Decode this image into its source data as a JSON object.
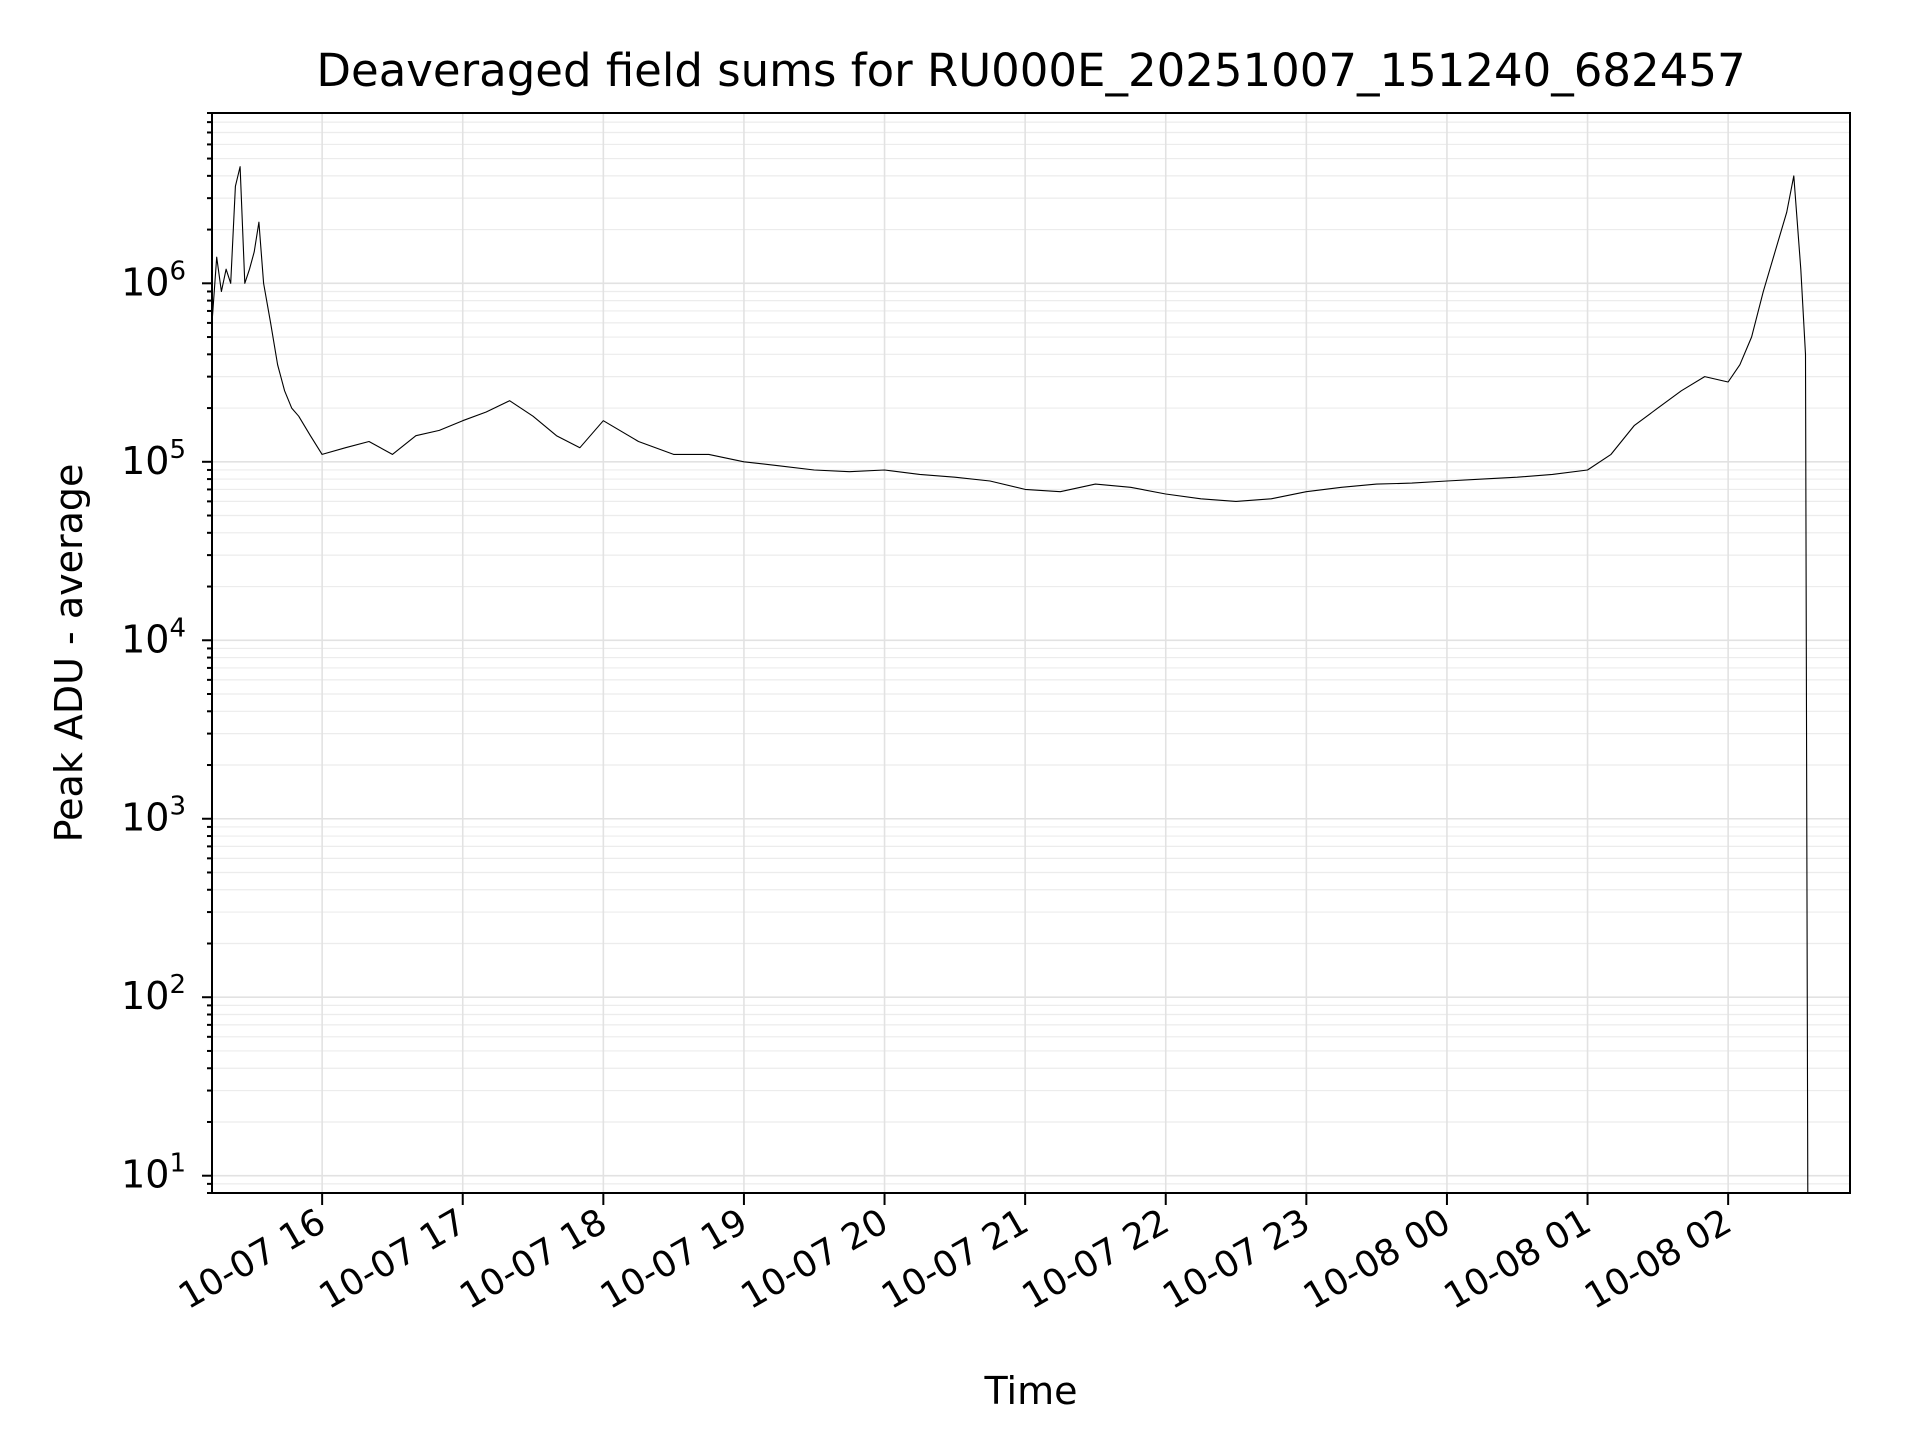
{
  "chart_data": {
    "type": "line",
    "title": "Deaveraged field sums for RU000E_20251007_151240_682457",
    "xlabel": "Time",
    "ylabel": "Peak ADU - average",
    "yscale": "log",
    "ylim": [
      8,
      9000000
    ],
    "xlim": [
      "2025-10-07 15:13",
      "2025-10-08 02:52"
    ],
    "grid": true,
    "line_color": "#000000",
    "x_ticks": [
      {
        "x": "2025-10-07 16:00",
        "label": "10-07 16"
      },
      {
        "x": "2025-10-07 17:00",
        "label": "10-07 17"
      },
      {
        "x": "2025-10-07 18:00",
        "label": "10-07 18"
      },
      {
        "x": "2025-10-07 19:00",
        "label": "10-07 19"
      },
      {
        "x": "2025-10-07 20:00",
        "label": "10-07 20"
      },
      {
        "x": "2025-10-07 21:00",
        "label": "10-07 21"
      },
      {
        "x": "2025-10-07 22:00",
        "label": "10-07 22"
      },
      {
        "x": "2025-10-07 23:00",
        "label": "10-07 23"
      },
      {
        "x": "2025-10-08 00:00",
        "label": "10-08 00"
      },
      {
        "x": "2025-10-08 01:00",
        "label": "10-08 01"
      },
      {
        "x": "2025-10-08 02:00",
        "label": "10-08 02"
      }
    ],
    "y_ticks": [
      {
        "value": 10,
        "base": "10",
        "exp": "1"
      },
      {
        "value": 100,
        "base": "10",
        "exp": "2"
      },
      {
        "value": 1000,
        "base": "10",
        "exp": "3"
      },
      {
        "value": 10000,
        "base": "10",
        "exp": "4"
      },
      {
        "value": 100000,
        "base": "10",
        "exp": "5"
      },
      {
        "value": 1000000,
        "base": "10",
        "exp": "6"
      }
    ],
    "series": [
      {
        "x": [
          "2025-10-07 15:13",
          "2025-10-07 15:15",
          "2025-10-07 15:17",
          "2025-10-07 15:19",
          "2025-10-07 15:21",
          "2025-10-07 15:23",
          "2025-10-07 15:25",
          "2025-10-07 15:27",
          "2025-10-07 15:29",
          "2025-10-07 15:31",
          "2025-10-07 15:33",
          "2025-10-07 15:35",
          "2025-10-07 15:38",
          "2025-10-07 15:41",
          "2025-10-07 15:44",
          "2025-10-07 15:47",
          "2025-10-07 15:50",
          "2025-10-07 15:55",
          "2025-10-07 16:00",
          "2025-10-07 16:10",
          "2025-10-07 16:20",
          "2025-10-07 16:30",
          "2025-10-07 16:40",
          "2025-10-07 16:50",
          "2025-10-07 17:00",
          "2025-10-07 17:10",
          "2025-10-07 17:20",
          "2025-10-07 17:30",
          "2025-10-07 17:40",
          "2025-10-07 17:50",
          "2025-10-07 18:00",
          "2025-10-07 18:15",
          "2025-10-07 18:30",
          "2025-10-07 18:45",
          "2025-10-07 19:00",
          "2025-10-07 19:15",
          "2025-10-07 19:30",
          "2025-10-07 19:45",
          "2025-10-07 20:00",
          "2025-10-07 20:15",
          "2025-10-07 20:30",
          "2025-10-07 20:45",
          "2025-10-07 21:00",
          "2025-10-07 21:15",
          "2025-10-07 21:30",
          "2025-10-07 21:45",
          "2025-10-07 22:00",
          "2025-10-07 22:15",
          "2025-10-07 22:30",
          "2025-10-07 22:45",
          "2025-10-07 23:00",
          "2025-10-07 23:15",
          "2025-10-07 23:30",
          "2025-10-07 23:45",
          "2025-10-08 00:00",
          "2025-10-08 00:15",
          "2025-10-08 00:30",
          "2025-10-08 00:45",
          "2025-10-08 01:00",
          "2025-10-08 01:10",
          "2025-10-08 01:20",
          "2025-10-08 01:30",
          "2025-10-08 01:40",
          "2025-10-08 01:50",
          "2025-10-08 02:00",
          "2025-10-08 02:05",
          "2025-10-08 02:10",
          "2025-10-08 02:15",
          "2025-10-08 02:20",
          "2025-10-08 02:25",
          "2025-10-08 02:28",
          "2025-10-08 02:31",
          "2025-10-08 02:33",
          "2025-10-08 02:34"
        ],
        "y": [
          600000,
          1400000,
          900000,
          1200000,
          1000000,
          3500000,
          4500000,
          1000000,
          1200000,
          1500000,
          2200000,
          1000000,
          600000,
          350000,
          250000,
          200000,
          180000,
          140000,
          110000,
          120000,
          130000,
          110000,
          140000,
          150000,
          170000,
          190000,
          220000,
          180000,
          140000,
          120000,
          170000,
          130000,
          110000,
          110000,
          100000,
          95000,
          90000,
          88000,
          90000,
          85000,
          82000,
          78000,
          70000,
          68000,
          75000,
          72000,
          66000,
          62000,
          60000,
          62000,
          68000,
          72000,
          75000,
          76000,
          78000,
          80000,
          82000,
          85000,
          90000,
          110000,
          160000,
          200000,
          250000,
          300000,
          280000,
          350000,
          500000,
          900000,
          1500000,
          2500000,
          4000000,
          1200000,
          400000,
          8
        ]
      }
    ]
  }
}
